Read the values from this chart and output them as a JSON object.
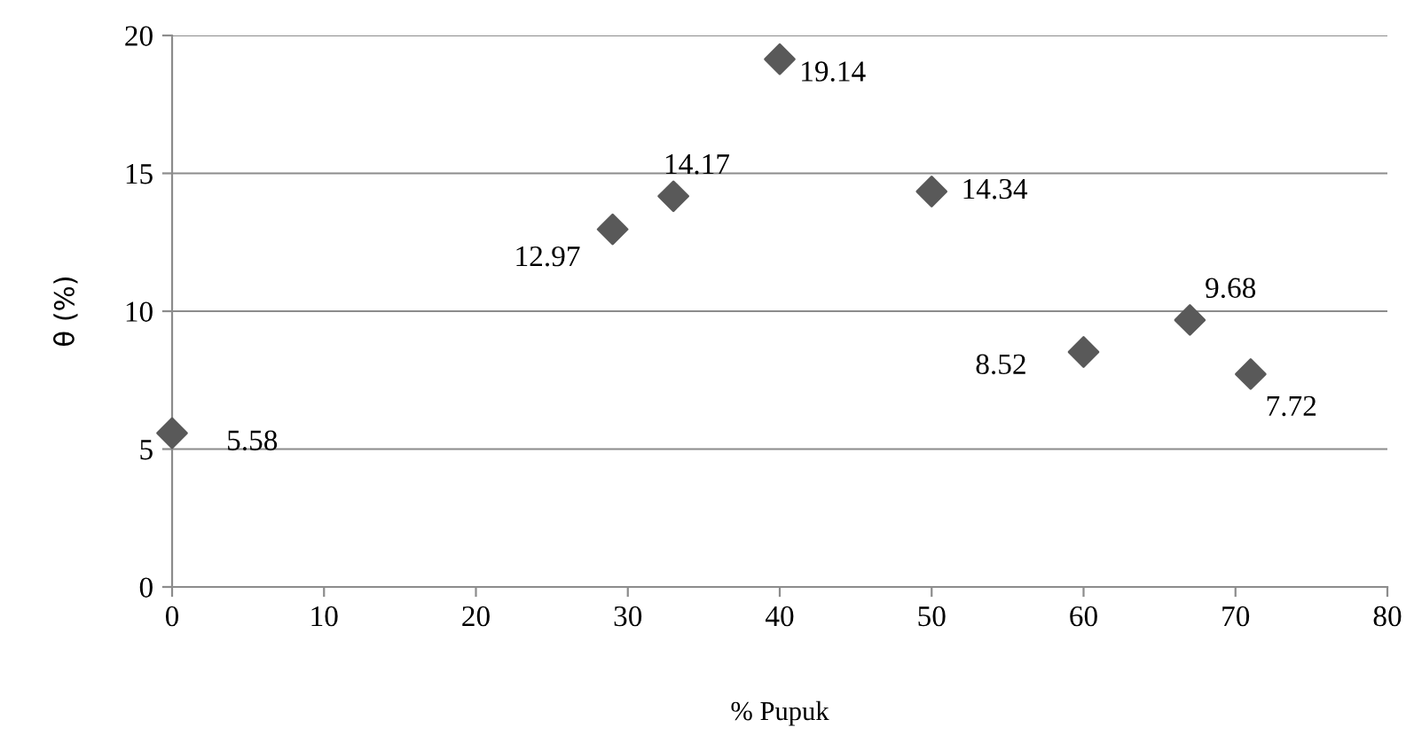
{
  "chart_data": {
    "type": "scatter",
    "xlabel": "% Pupuk",
    "ylabel": "θ (%)",
    "x": [
      0,
      29,
      33,
      40,
      50,
      60,
      67,
      71
    ],
    "series": [
      {
        "color": "#595959",
        "values": [
          5.58,
          12.97,
          14.17,
          19.14,
          14.34,
          8.52,
          9.68,
          7.72
        ]
      }
    ],
    "xlim": [
      0,
      80
    ],
    "xticks": [
      0,
      10,
      20,
      30,
      40,
      50,
      60,
      70,
      80
    ],
    "ylim": [
      0,
      20
    ],
    "yticks": [
      0,
      5,
      10,
      15,
      20
    ],
    "grid": "y",
    "marker": "diamond",
    "data_labels": true
  }
}
